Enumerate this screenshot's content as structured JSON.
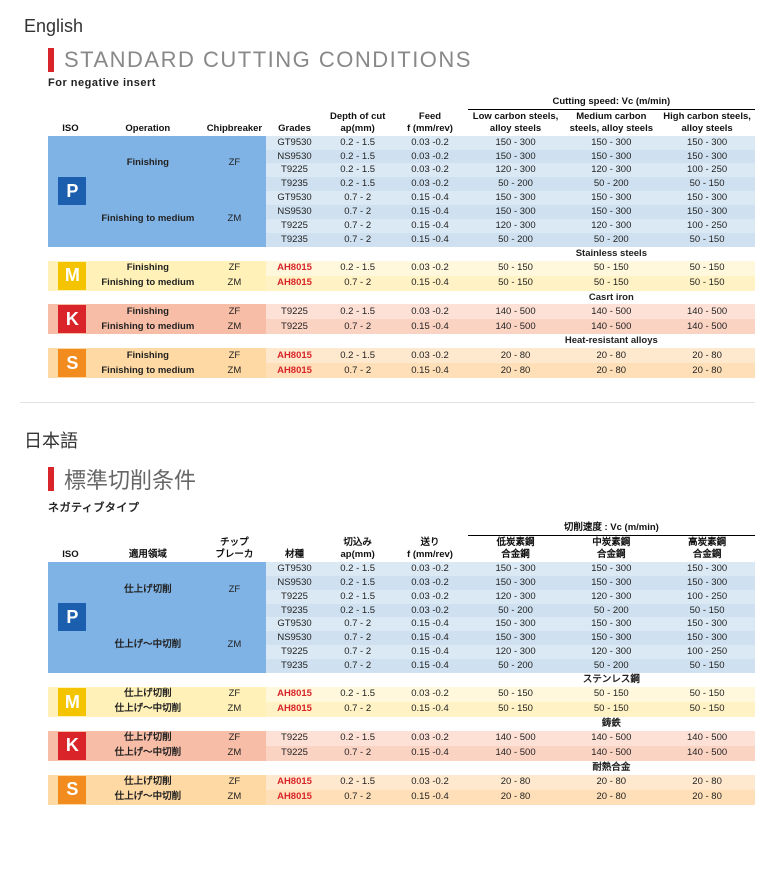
{
  "labels": {
    "en_lang": "English",
    "ja_lang": "日本語",
    "en_title": "STANDARD CUTTING CONDITIONS",
    "ja_title": "標準切削条件",
    "en_sub": "For negative insert",
    "ja_sub": "ネガティブタイプ"
  },
  "headers": {
    "en": {
      "iso": "ISO",
      "op": "Operation",
      "chip": "Chipbreaker",
      "grade": "Grades",
      "ap1": "Depth of cut",
      "ap2": "ap(mm)",
      "feed1": "Feed",
      "feed2": "f (mm/rev)",
      "speed_group": "Cutting speed: Vc (m/min)",
      "v1a": "Low carbon steels,",
      "v1b": "alloy steels",
      "v2a": "Medium carbon",
      "v2b": "steels, alloy steels",
      "v3a": "High carbon steels,",
      "v3b": "alloy steels",
      "mat_m": "Stainless steels",
      "mat_k": "Casrt iron",
      "mat_s": "Heat-resistant alloys"
    },
    "ja": {
      "iso": "ISO",
      "op": "適用領域",
      "chip": "チップ\nブレーカ",
      "grade": "材種",
      "ap1": "切込み",
      "ap2": "ap(mm)",
      "feed1": "送り",
      "feed2": "f (mm/rev)",
      "speed_group": "切削速度 : Vc (m/min)",
      "v1a": "低炭素鋼",
      "v1b": "合金鋼",
      "v2a": "中炭素鋼",
      "v2b": "合金鋼",
      "v3a": "高炭素鋼",
      "v3b": "合金鋼",
      "mat_m": "ステンレス鋼",
      "mat_k": "鋳鉄",
      "mat_s": "耐熱合金"
    }
  },
  "iso_colors": {
    "P": {
      "bg": "#7fb2e5",
      "badge": "#1b5fae"
    },
    "M": {
      "bg": "#fff1b8",
      "badge": "#f5c400"
    },
    "K": {
      "bg": "#f8bda6",
      "badge": "#d9252a"
    },
    "S": {
      "bg": "#ffd9a3",
      "badge": "#f28c1e"
    }
  },
  "row_shades": {
    "blue_a": "#dbe9f4",
    "blue_b": "#cfe1f0",
    "yel_a": "#fff8dc",
    "yel_b": "#fff2c4",
    "red_a": "#fde1d6",
    "red_b": "#fbd3c3",
    "org_a": "#ffe9ce",
    "org_b": "#ffdfb8"
  },
  "ops": {
    "en": {
      "fin": "Finishing",
      "finmed": "Finishing to medium"
    },
    "ja": {
      "fin": "仕上げ切削",
      "finmed": "仕上げ～中切削"
    }
  },
  "sections": {
    "P": [
      {
        "chip": "ZF",
        "ops_key": "fin",
        "rows": [
          {
            "grade": "GT9530",
            "ap": "0.2 - 1.5",
            "feed": "0.03 -0.2",
            "v": [
              "150 - 300",
              "150 - 300",
              "150 - 300"
            ]
          },
          {
            "grade": "NS9530",
            "ap": "0.2 - 1.5",
            "feed": "0.03 -0.2",
            "v": [
              "150 - 300",
              "150 - 300",
              "150 - 300"
            ]
          },
          {
            "grade": "T9225",
            "ap": "0.2 - 1.5",
            "feed": "0.03 -0.2",
            "v": [
              "120 - 300",
              "120 - 300",
              "100 - 250"
            ]
          },
          {
            "grade": "T9235",
            "ap": "0.2 - 1.5",
            "feed": "0.03 -0.2",
            "v": [
              "50 - 200",
              "50 - 200",
              "50 - 150"
            ]
          }
        ]
      },
      {
        "chip": "ZM",
        "ops_key": "finmed",
        "rows": [
          {
            "grade": "GT9530",
            "ap": "0.7 - 2",
            "feed": "0.15 -0.4",
            "v": [
              "150 - 300",
              "150 - 300",
              "150 - 300"
            ]
          },
          {
            "grade": "NS9530",
            "ap": "0.7 - 2",
            "feed": "0.15 -0.4",
            "v": [
              "150 - 300",
              "150 - 300",
              "150 - 300"
            ]
          },
          {
            "grade": "T9225",
            "ap": "0.7 - 2",
            "feed": "0.15 -0.4",
            "v": [
              "120 - 300",
              "120 - 300",
              "100 - 250"
            ]
          },
          {
            "grade": "T9235",
            "ap": "0.7 - 2",
            "feed": "0.15 -0.4",
            "v": [
              "50 - 200",
              "50 - 200",
              "50 - 150"
            ]
          }
        ]
      }
    ],
    "M": [
      {
        "chip": "ZF",
        "ops_key": "fin",
        "rows": [
          {
            "grade": "AH8015",
            "ap": "0.2 - 1.5",
            "feed": "0.03 -0.2",
            "v": [
              "50 - 150",
              "50 - 150",
              "50 - 150"
            ],
            "red": true
          }
        ]
      },
      {
        "chip": "ZM",
        "ops_key": "finmed",
        "rows": [
          {
            "grade": "AH8015",
            "ap": "0.7 - 2",
            "feed": "0.15 -0.4",
            "v": [
              "50 - 150",
              "50 - 150",
              "50 - 150"
            ],
            "red": true
          }
        ]
      }
    ],
    "K": [
      {
        "chip": "ZF",
        "ops_key": "fin",
        "rows": [
          {
            "grade": "T9225",
            "ap": "0.2 - 1.5",
            "feed": "0.03 -0.2",
            "v": [
              "140 - 500",
              "140 - 500",
              "140 - 500"
            ]
          }
        ]
      },
      {
        "chip": "ZM",
        "ops_key": "finmed",
        "rows": [
          {
            "grade": "T9225",
            "ap": "0.7 - 2",
            "feed": "0.15 -0.4",
            "v": [
              "140 - 500",
              "140 - 500",
              "140 - 500"
            ]
          }
        ]
      }
    ],
    "S": [
      {
        "chip": "ZF",
        "ops_key": "fin",
        "rows": [
          {
            "grade": "AH8015",
            "ap": "0.2 - 1.5",
            "feed": "0.03 -0.2",
            "v": [
              "20 - 80",
              "20 - 80",
              "20 - 80"
            ],
            "red": true
          }
        ]
      },
      {
        "chip": "ZM",
        "ops_key": "finmed",
        "rows": [
          {
            "grade": "AH8015",
            "ap": "0.7 - 2",
            "feed": "0.15 -0.4",
            "v": [
              "20 - 80",
              "20 - 80",
              "20 - 80"
            ],
            "red": true
          }
        ]
      }
    ]
  }
}
